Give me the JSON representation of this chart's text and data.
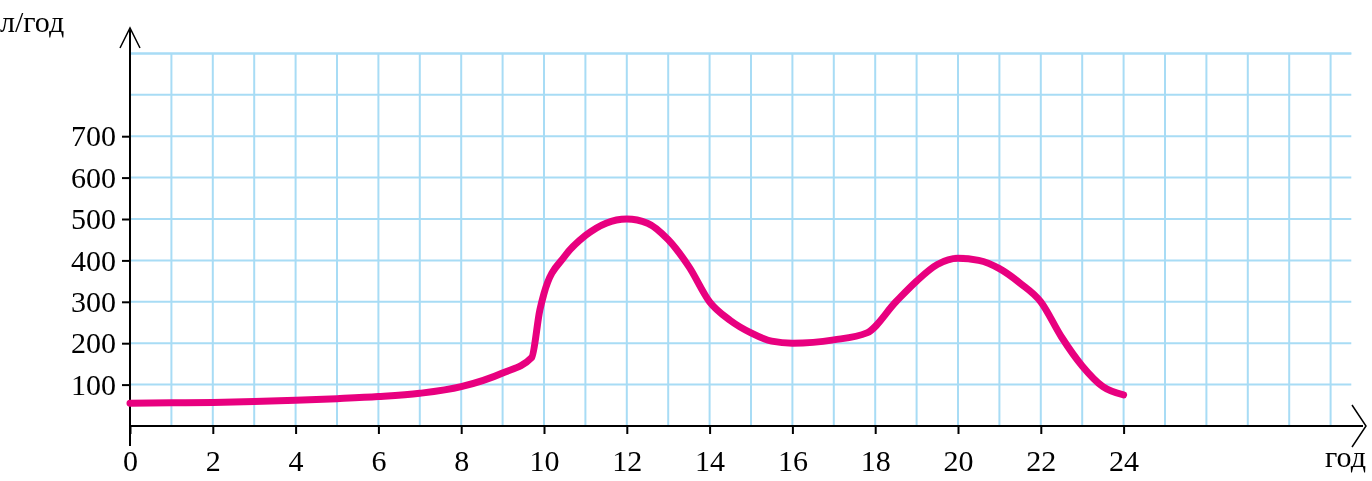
{
  "chart_data": {
    "type": "line",
    "xlabel": "год",
    "ylabel": "л/год",
    "xlim": [
      0,
      29.5
    ],
    "ylim": [
      0,
      900
    ],
    "xticks": [
      0,
      {
        "value": 1,
        "label": null
      },
      2,
      {
        "value": 3,
        "label": null
      },
      4,
      {
        "value": 5,
        "label": null
      },
      6,
      {
        "value": 7,
        "label": null
      },
      8,
      {
        "value": 9,
        "label": null
      },
      10,
      {
        "value": 11,
        "label": null
      },
      12,
      {
        "value": 13,
        "label": null
      },
      14,
      {
        "value": 15,
        "label": null
      },
      16,
      {
        "value": 17,
        "label": null
      },
      18,
      {
        "value": 19,
        "label": null
      },
      20,
      {
        "value": 21,
        "label": null
      },
      22,
      {
        "value": 23,
        "label": null
      },
      24,
      {
        "value": 25,
        "label": null
      },
      {
        "value": 26,
        "label": null
      },
      {
        "value": 27,
        "label": null
      },
      {
        "value": 28,
        "label": null
      },
      {
        "value": 29,
        "label": null
      }
    ],
    "yticks": [
      100,
      200,
      300,
      400,
      500,
      600,
      700,
      {
        "value": 800,
        "label": null
      },
      {
        "value": 900,
        "label": null
      }
    ],
    "grid": true,
    "marker": "none",
    "line_style": "solid",
    "series": [
      {
        "color": "#e8007f",
        "x": [
          0,
          1,
          2,
          3,
          4,
          5,
          6,
          7,
          8,
          9,
          9.7,
          9.9,
          10,
          10.5,
          11,
          11.5,
          12,
          12.5,
          13,
          13.5,
          14,
          14.5,
          15,
          15.5,
          16,
          16.5,
          17,
          17.8,
          18.5,
          19,
          19.5,
          20,
          20.5,
          21,
          21.5,
          22,
          22.5,
          23,
          23.5,
          24
        ],
        "values": [
          55,
          56,
          57,
          59,
          62,
          66,
          71,
          79,
          95,
          128,
          165,
          280,
          320,
          410,
          460,
          490,
          500,
          490,
          450,
          385,
          300,
          255,
          225,
          205,
          200,
          202,
          208,
          225,
          300,
          350,
          390,
          405,
          400,
          380,
          345,
          300,
          215,
          145,
          95,
          75
        ]
      }
    ]
  }
}
